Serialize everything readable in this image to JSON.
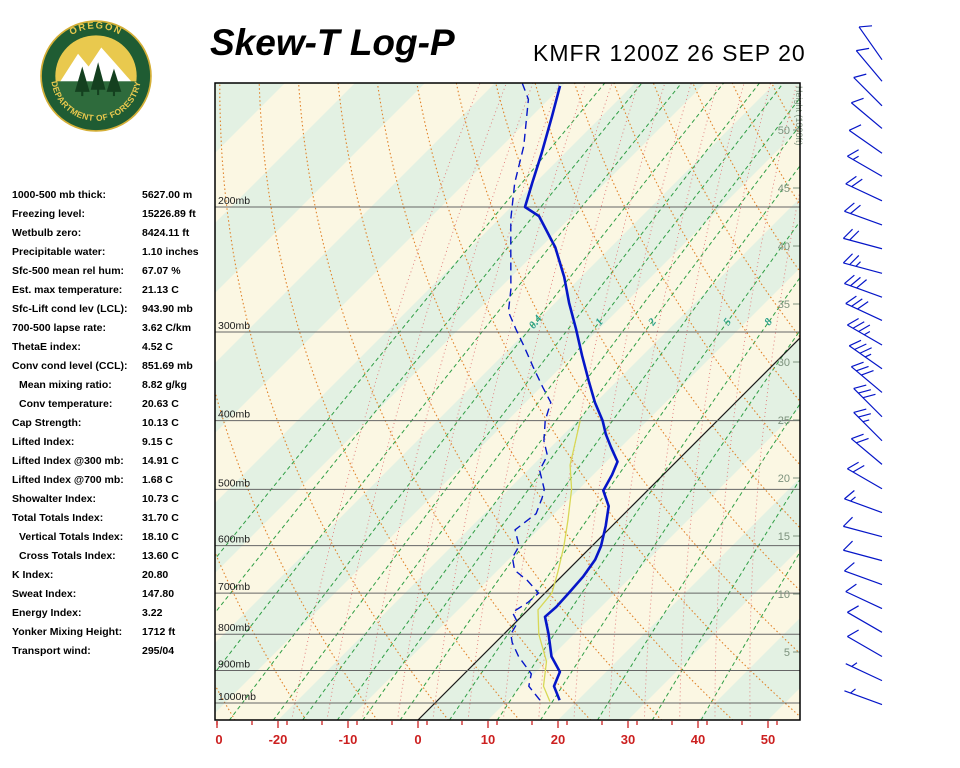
{
  "header": {
    "title": "Skew-T Log-P",
    "station_line": "KMFR 1200Z 26 SEP 20",
    "logo": {
      "top": "OREGON",
      "bottom": "DEPARTMENT OF FORESTRY"
    }
  },
  "indices": {
    "rows": [
      {
        "label": "1000-500 mb thick:",
        "value": "5627.00 m",
        "indent": false
      },
      {
        "label": "Freezing level:",
        "value": "15226.89 ft",
        "indent": false
      },
      {
        "label": "Wetbulb zero:",
        "value": "8424.11 ft",
        "indent": false
      },
      {
        "label": "Precipitable water:",
        "value": "1.10 inches",
        "indent": false
      },
      {
        "label": "Sfc-500 mean rel hum:",
        "value": "67.07 %",
        "indent": false
      },
      {
        "label": "Est. max temperature:",
        "value": "21.13 C",
        "indent": false
      },
      {
        "label": "Sfc-Lift cond lev (LCL):",
        "value": "943.90 mb",
        "indent": false
      },
      {
        "label": "700-500 lapse rate:",
        "value": "3.62 C/km",
        "indent": false
      },
      {
        "label": "ThetaE index:",
        "value": "4.52 C",
        "indent": false
      },
      {
        "label": "Conv cond level (CCL):",
        "value": "851.69 mb",
        "indent": false
      },
      {
        "label": "Mean mixing ratio:",
        "value": "8.82 g/kg",
        "indent": true
      },
      {
        "label": "Conv temperature:",
        "value": "20.63 C",
        "indent": true
      },
      {
        "label": "Cap Strength:",
        "value": "10.13 C",
        "indent": false
      },
      {
        "label": "Lifted Index:",
        "value": "9.15 C",
        "indent": false
      },
      {
        "label": "Lifted Index @300 mb:",
        "value": "14.91 C",
        "indent": false
      },
      {
        "label": "Lifted Index @700 mb:",
        "value": "1.68 C",
        "indent": false
      },
      {
        "label": "Showalter Index:",
        "value": "10.73 C",
        "indent": false
      },
      {
        "label": "Total Totals Index:",
        "value": "31.70 C",
        "indent": false
      },
      {
        "label": "Vertical Totals Index:",
        "value": "18.10 C",
        "indent": true
      },
      {
        "label": "Cross Totals Index:",
        "value": "13.60 C",
        "indent": true
      },
      {
        "label": "K Index:",
        "value": "20.80",
        "indent": false
      },
      {
        "label": "Sweat Index:",
        "value": "147.80",
        "indent": false
      },
      {
        "label": "Energy Index:",
        "value": "3.22",
        "indent": false
      },
      {
        "label": "Yonker Mixing Height:",
        "value": "1712 ft",
        "indent": false
      },
      {
        "label": "Transport wind:",
        "value": "295/04",
        "indent": false
      }
    ]
  },
  "chart_data": {
    "type": "skewt-log-p",
    "pressure_levels_mb": [
      200,
      300,
      400,
      500,
      600,
      700,
      800,
      900,
      1000
    ],
    "pressure_label_suffix": "mb",
    "temp_axis": {
      "tick_values_c": [
        -20,
        -10,
        0,
        10,
        20,
        30,
        40,
        50
      ],
      "origin_label": "0"
    },
    "height_scale": {
      "values_kft": [
        50,
        45,
        40,
        35,
        30,
        25,
        20,
        15,
        10,
        5
      ],
      "title": "Height (1000ft)"
    },
    "dry_adiabats_theta_c": [
      -40,
      -30,
      -20,
      -10,
      0,
      10,
      20,
      30,
      40,
      50,
      60,
      70,
      80,
      90,
      100,
      110,
      120,
      130,
      140,
      150
    ],
    "moist_adiabats_thetaw_c": [
      -20,
      -15,
      -10,
      -5,
      0,
      5,
      10,
      15,
      20,
      25,
      30,
      35,
      40,
      45
    ],
    "mixing_ratio_lines_gkg": [
      0.05,
      0.1,
      0.2,
      0.4,
      0.7,
      1,
      1.5,
      2,
      3,
      5,
      8,
      12,
      20,
      32,
      48
    ],
    "mixing_ratio_labels": [
      "0.4",
      "1",
      "2",
      "5",
      "8"
    ],
    "mixing_ratio_label_values": [
      0.4,
      1,
      2,
      5,
      8
    ],
    "sounding": {
      "temperature": [
        [
          991,
          17.4
        ],
        [
          947,
          14.6
        ],
        [
          904,
          13.4
        ],
        [
          860,
          10.0
        ],
        [
          800,
          6.4
        ],
        [
          756,
          3.4
        ],
        [
          732,
          3.6
        ],
        [
          700,
          3.4
        ],
        [
          663,
          3.1
        ],
        [
          628,
          2.4
        ],
        [
          601,
          1.3
        ],
        [
          563,
          -0.9
        ],
        [
          528,
          -3.3
        ],
        [
          502,
          -6.3
        ],
        [
          477,
          -7.3
        ],
        [
          457,
          -8.4
        ],
        [
          436,
          -11.4
        ],
        [
          418,
          -14.0
        ],
        [
          400,
          -16.4
        ],
        [
          377,
          -20.1
        ],
        [
          352,
          -24.0
        ],
        [
          324,
          -28.6
        ],
        [
          297,
          -33.3
        ],
        [
          273,
          -38.0
        ],
        [
          251,
          -42.4
        ],
        [
          228,
          -47.9
        ],
        [
          206,
          -54.7
        ],
        [
          200,
          -58.0
        ],
        [
          185,
          -60.4
        ],
        [
          168,
          -63.3
        ],
        [
          149,
          -67.1
        ],
        [
          135,
          -70.3
        ]
      ],
      "dewpoint": [
        [
          991,
          14.6
        ],
        [
          947,
          11.0
        ],
        [
          910,
          9.6
        ],
        [
          860,
          5.3
        ],
        [
          822,
          2.4
        ],
        [
          800,
          1.0
        ],
        [
          770,
          0.3
        ],
        [
          745,
          -1.9
        ],
        [
          722,
          -1.1
        ],
        [
          700,
          -0.9
        ],
        [
          672,
          -4.3
        ],
        [
          650,
          -7.6
        ],
        [
          624,
          -9.7
        ],
        [
          601,
          -10.4
        ],
        [
          570,
          -13.3
        ],
        [
          541,
          -12.6
        ],
        [
          514,
          -14.0
        ],
        [
          500,
          -14.9
        ],
        [
          470,
          -18.3
        ],
        [
          448,
          -19.3
        ],
        [
          427,
          -21.9
        ],
        [
          400,
          -24.6
        ],
        [
          377,
          -26.4
        ],
        [
          359,
          -29.7
        ],
        [
          336,
          -34.0
        ],
        [
          314,
          -38.3
        ],
        [
          297,
          -41.9
        ],
        [
          281,
          -45.4
        ],
        [
          261,
          -48.3
        ],
        [
          233,
          -53.3
        ],
        [
          208,
          -58.3
        ],
        [
          185,
          -62.9
        ],
        [
          164,
          -66.9
        ],
        [
          141,
          -72.9
        ],
        [
          134,
          -76.0
        ]
      ],
      "wetbulb": [
        [
          995,
          16.2
        ],
        [
          947,
          13.1
        ],
        [
          874,
          10.0
        ],
        [
          800,
          5.0
        ],
        [
          739,
          1.4
        ],
        [
          700,
          1.0
        ],
        [
          655,
          -1.1
        ],
        [
          601,
          -4.0
        ],
        [
          553,
          -7.1
        ],
        [
          500,
          -11.0
        ],
        [
          462,
          -14.7
        ],
        [
          400,
          -19.6
        ]
      ]
    },
    "winds": [
      {
        "p": 1005,
        "dir": 290,
        "spd": 4
      },
      {
        "p": 930,
        "dir": 295,
        "spd": 6
      },
      {
        "p": 860,
        "dir": 300,
        "spd": 8
      },
      {
        "p": 795,
        "dir": 300,
        "spd": 8
      },
      {
        "p": 736,
        "dir": 295,
        "spd": 10
      },
      {
        "p": 681,
        "dir": 290,
        "spd": 10
      },
      {
        "p": 630,
        "dir": 285,
        "spd": 12
      },
      {
        "p": 583,
        "dir": 285,
        "spd": 12
      },
      {
        "p": 539,
        "dir": 290,
        "spd": 15
      },
      {
        "p": 499,
        "dir": 300,
        "spd": 18
      },
      {
        "p": 461,
        "dir": 310,
        "spd": 22
      },
      {
        "p": 427,
        "dir": 315,
        "spd": 25
      },
      {
        "p": 395,
        "dir": 315,
        "spd": 30
      },
      {
        "p": 365,
        "dir": 310,
        "spd": 32
      },
      {
        "p": 338,
        "dir": 305,
        "spd": 35
      },
      {
        "p": 313,
        "dir": 300,
        "spd": 35
      },
      {
        "p": 289,
        "dir": 295,
        "spd": 30
      },
      {
        "p": 268,
        "dir": 290,
        "spd": 28
      },
      {
        "p": 248,
        "dir": 285,
        "spd": 25
      },
      {
        "p": 229,
        "dir": 285,
        "spd": 22
      },
      {
        "p": 212,
        "dir": 290,
        "spd": 20
      },
      {
        "p": 196,
        "dir": 295,
        "spd": 18
      },
      {
        "p": 181,
        "dir": 300,
        "spd": 15
      },
      {
        "p": 168,
        "dir": 305,
        "spd": 12
      },
      {
        "p": 155,
        "dir": 310,
        "spd": 10
      },
      {
        "p": 144,
        "dir": 315,
        "spd": 8
      },
      {
        "p": 133,
        "dir": 320,
        "spd": 10
      },
      {
        "p": 124,
        "dir": 325,
        "spd": 12
      }
    ],
    "colors": {
      "background_cream": "#fbf7e3",
      "band_green": "#e3f1e3",
      "dry_adiabat": "#e08228",
      "moist_adiabat": "#e07878",
      "mixing_ratio": "#2f9e44",
      "isobar": "#666666",
      "zero_isotherm": "#1a1a1a",
      "temperature_trace": "#0616c8",
      "dewpoint_trace": "#0616c8",
      "wetbulb_trace": "#d8d855",
      "wind_barb": "#0616c8",
      "temp_axis_label": "#cc2020",
      "height_label": "#7d927d",
      "mixing_label": "#2aa089"
    }
  }
}
